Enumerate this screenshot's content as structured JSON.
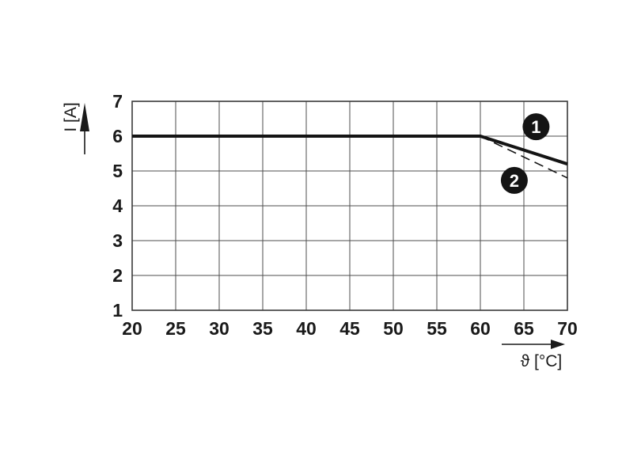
{
  "figure": {
    "background": "#ffffff",
    "text_color": "#1a1a1a",
    "grid_color": "#4d4d4d",
    "border_color": "#3a3a3a",
    "curve_color": "#141414",
    "badge_bg": "#141414",
    "badge_text_color": "#ffffff"
  },
  "chart_data": {
    "type": "line",
    "title": "",
    "xlabel": "ϑ [°C]",
    "ylabel": "I [A]",
    "xlim": [
      20,
      70
    ],
    "ylim": [
      1,
      7
    ],
    "x_ticks": [
      20,
      25,
      30,
      35,
      40,
      45,
      50,
      55,
      60,
      65,
      70
    ],
    "y_ticks": [
      1,
      2,
      3,
      4,
      5,
      6,
      7
    ],
    "grid": true,
    "legend_position": "numbered-badges-inside-plot",
    "series": [
      {
        "name": "1",
        "line_style": "solid",
        "line_width": 4,
        "points": [
          [
            20,
            6
          ],
          [
            60,
            6
          ],
          [
            70,
            5.2
          ]
        ],
        "badge": {
          "label": "1",
          "x": 66.4,
          "y": 6.27
        }
      },
      {
        "name": "2",
        "line_style": "dashed",
        "line_width": 1.6,
        "points": [
          [
            60,
            6
          ],
          [
            70,
            4.8
          ]
        ],
        "badge": {
          "label": "2",
          "x": 63.9,
          "y": 4.73
        }
      }
    ]
  }
}
